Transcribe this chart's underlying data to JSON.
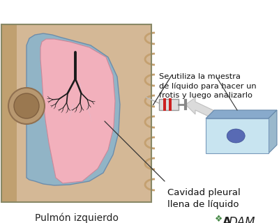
{
  "bg_color": "#ffffff",
  "title_bottom": "Pulmón izquierdo",
  "label1": "Cavidad pleural\nllena de líquido",
  "label2": "Se utiliza la muestra\nde líquido para hacer un\nfrotis y luego analizarlo",
  "lung_fill": "#f2b0bc",
  "pleural_fluid_color": "#8ab4cc",
  "bronchi_color": "#1a1a1a",
  "tissue_color": "#d4b896",
  "slide_color_main": "#c8e4f0",
  "slide_color_spot": "#4455aa",
  "syringe_color": "#888888",
  "arrow_color": "#e0e0e0",
  "annotation_color": "#333333",
  "adam_green": "#448844",
  "adam_black": "#222222"
}
